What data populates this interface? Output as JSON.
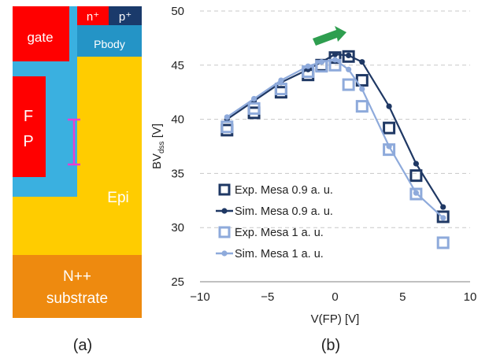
{
  "panel_a": {
    "caption": "(a)",
    "labels": {
      "gate": "gate",
      "n_plus": "n⁺",
      "p_plus": "p⁺",
      "pbody": "Pbody",
      "fp_line1": "F",
      "fp_line2": "P",
      "epi": "Epi",
      "substrate_line1": "N++",
      "substrate_line2": "substrate"
    },
    "colors": {
      "gate": "#ff0000",
      "field_plate": "#ff0000",
      "oxide": "#3ab0e0",
      "epi": "#ffcc00",
      "substrate": "#ee8a0f",
      "pbody": "#2494c6",
      "n_plus": "#ff0000",
      "p_plus": "#1a3a6b",
      "marker": "#e83fd0"
    }
  },
  "panel_b": {
    "caption": "(b)"
  },
  "chart_data": {
    "type": "scatter",
    "xlabel": "V(FP) [V]",
    "ylabel_main": "BV",
    "ylabel_sub": "dss",
    "ylabel_unit": " [V]",
    "xlim": [
      -10,
      10
    ],
    "ylim": [
      25,
      50
    ],
    "xticks": [
      -10,
      -5,
      0,
      5,
      10
    ],
    "yticks": [
      25,
      30,
      35,
      40,
      45,
      50
    ],
    "grid": "horizontal dashed",
    "legend_position": "left",
    "arrow_color": "#2e9e4f",
    "series": [
      {
        "name": "Exp. Mesa 0.9 a. u.",
        "style": "open-square",
        "color": "#1f3864",
        "points": [
          [
            -8,
            39.0
          ],
          [
            -6,
            40.6
          ],
          [
            -4,
            42.5
          ],
          [
            -2,
            44.1
          ],
          [
            -1,
            45.0
          ],
          [
            0,
            45.7
          ],
          [
            1,
            45.8
          ],
          [
            2,
            43.6
          ],
          [
            4,
            39.2
          ],
          [
            6,
            34.8
          ],
          [
            8,
            31.0
          ]
        ]
      },
      {
        "name": "Sim. Mesa 0.9 a. u.",
        "style": "line-dot",
        "color": "#1f3864",
        "points": [
          [
            -8,
            40.0
          ],
          [
            -6,
            41.7
          ],
          [
            -4,
            43.4
          ],
          [
            -2,
            44.6
          ],
          [
            -1,
            45.3
          ],
          [
            0,
            46.0
          ],
          [
            1,
            45.9
          ],
          [
            2,
            45.3
          ],
          [
            4,
            41.2
          ],
          [
            6,
            35.9
          ],
          [
            8,
            31.9
          ]
        ]
      },
      {
        "name": "Exp. Mesa 1 a. u.",
        "style": "open-square",
        "color": "#8eaadb",
        "points": [
          [
            -8,
            39.3
          ],
          [
            -6,
            41.0
          ],
          [
            -4,
            42.8
          ],
          [
            -2,
            44.4
          ],
          [
            -1,
            44.9
          ],
          [
            0,
            45.0
          ],
          [
            1,
            43.2
          ],
          [
            2,
            41.2
          ],
          [
            4,
            37.2
          ],
          [
            6,
            33.1
          ],
          [
            8,
            28.6
          ]
        ]
      },
      {
        "name": "Sim. Mesa 1 a. u.",
        "style": "line-dot",
        "color": "#8eaadb",
        "points": [
          [
            -8,
            40.2
          ],
          [
            -6,
            41.9
          ],
          [
            -4,
            43.6
          ],
          [
            -2,
            44.9
          ],
          [
            -1,
            45.3
          ],
          [
            0,
            45.5
          ],
          [
            1,
            44.6
          ],
          [
            2,
            42.8
          ],
          [
            4,
            37.5
          ],
          [
            6,
            33.2
          ],
          [
            8,
            30.9
          ]
        ]
      }
    ]
  }
}
